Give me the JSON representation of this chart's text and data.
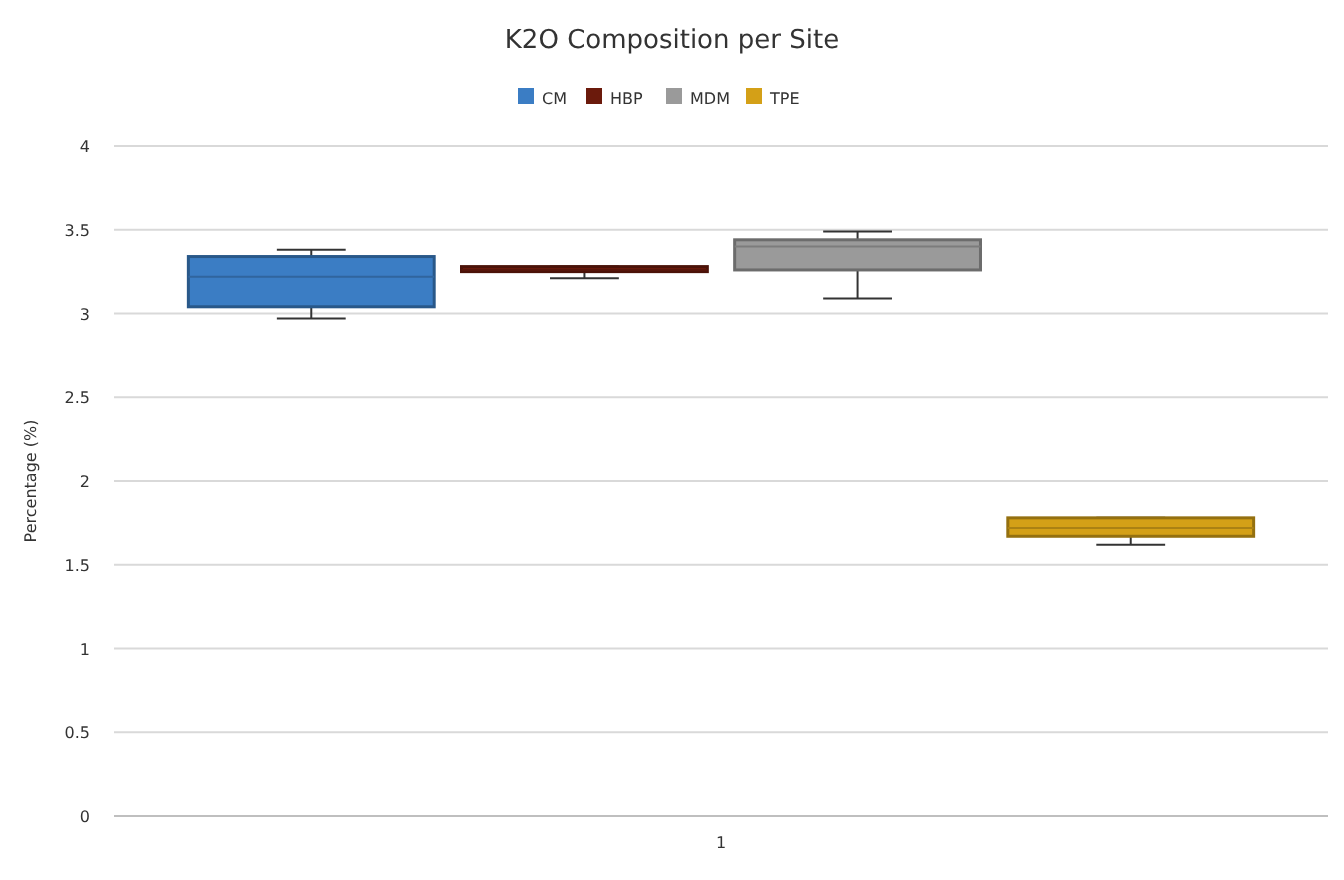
{
  "chart_data": {
    "type": "box",
    "title": "K2O Composition per Site",
    "ylabel": "Percentage (%)",
    "categories": [
      "1"
    ],
    "series": [
      {
        "name": "CM",
        "color": "#3b7dc4",
        "boxes": [
          {
            "low": 2.97,
            "q1": 3.04,
            "median": 3.22,
            "q3": 3.34,
            "high": 3.38
          }
        ]
      },
      {
        "name": "HBP",
        "color": "#6b1a0c",
        "boxes": [
          {
            "low": 3.21,
            "q1": 3.25,
            "median": 3.26,
            "q3": 3.28,
            "high": 3.28
          }
        ]
      },
      {
        "name": "MDM",
        "color": "#9a9a9a",
        "boxes": [
          {
            "low": 3.09,
            "q1": 3.26,
            "median": 3.4,
            "q3": 3.44,
            "high": 3.49
          }
        ]
      },
      {
        "name": "TPE",
        "color": "#d4a017",
        "boxes": [
          {
            "low": 1.62,
            "q1": 1.67,
            "median": 1.72,
            "q3": 1.78,
            "high": 1.78
          }
        ]
      }
    ],
    "ylim": [
      0,
      4
    ],
    "yticks": [
      0,
      0.5,
      1,
      1.5,
      2,
      2.5,
      3,
      3.5,
      4
    ],
    "grid": "y",
    "legend": "top"
  }
}
